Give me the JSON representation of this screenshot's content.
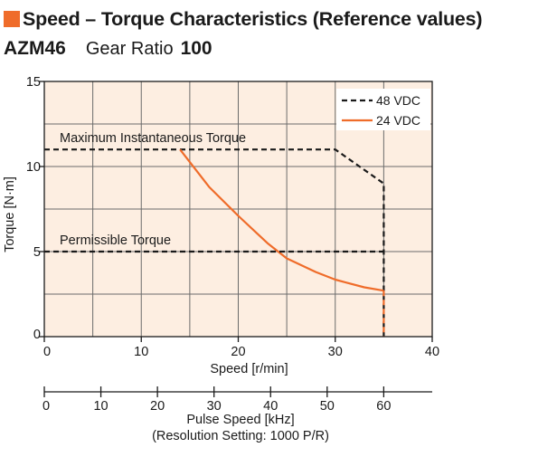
{
  "header": {
    "title": "Speed – Torque Characteristics (Reference values)",
    "model": "AZM46",
    "gear_ratio_label": "Gear Ratio",
    "gear_ratio_value": "100",
    "accent_color": "#ef6c2a"
  },
  "chart_data": {
    "type": "line",
    "title": "",
    "xlabel": "Speed [r/min]",
    "ylabel": "Torque [N·m]",
    "xlim": [
      0,
      40
    ],
    "ylim": [
      0,
      15
    ],
    "x_ticks": [
      "0",
      "10",
      "20",
      "30",
      "40"
    ],
    "y_ticks": [
      "0",
      "5",
      "10",
      "15"
    ],
    "grid": true,
    "background_color": "#fdeee1",
    "legend_position": "top-right",
    "series": [
      {
        "name": "48 VDC",
        "style": "dashed",
        "color": "#1a1a1a",
        "points": [
          [
            0,
            11
          ],
          [
            30,
            11
          ],
          [
            35,
            9
          ],
          [
            35,
            0
          ]
        ]
      },
      {
        "name": "24 VDC",
        "style": "solid",
        "color": "#ef6c2a",
        "points": [
          [
            14,
            11
          ],
          [
            17,
            8.8
          ],
          [
            20,
            7.1
          ],
          [
            23,
            5.5
          ],
          [
            25,
            4.6
          ],
          [
            28,
            3.8
          ],
          [
            30,
            3.35
          ],
          [
            33,
            2.9
          ],
          [
            35,
            2.7
          ]
        ]
      },
      {
        "name": "24 VDC",
        "style": "dashed",
        "color": "#ef6c2a",
        "points": [
          [
            35,
            2.7
          ],
          [
            35,
            0
          ]
        ]
      }
    ],
    "annotations": [
      {
        "text": "Maximum Instantaneous Torque",
        "y": 11
      },
      {
        "text": "Permissible Torque",
        "y": 5
      }
    ],
    "secondary_x_axis": {
      "label": "Pulse Speed [kHz]",
      "note": "(Resolution Setting: 1000 P/R)",
      "ticks": [
        "0",
        "10",
        "20",
        "30",
        "40",
        "50",
        "60"
      ],
      "max_speed_equivalent": 60
    }
  }
}
